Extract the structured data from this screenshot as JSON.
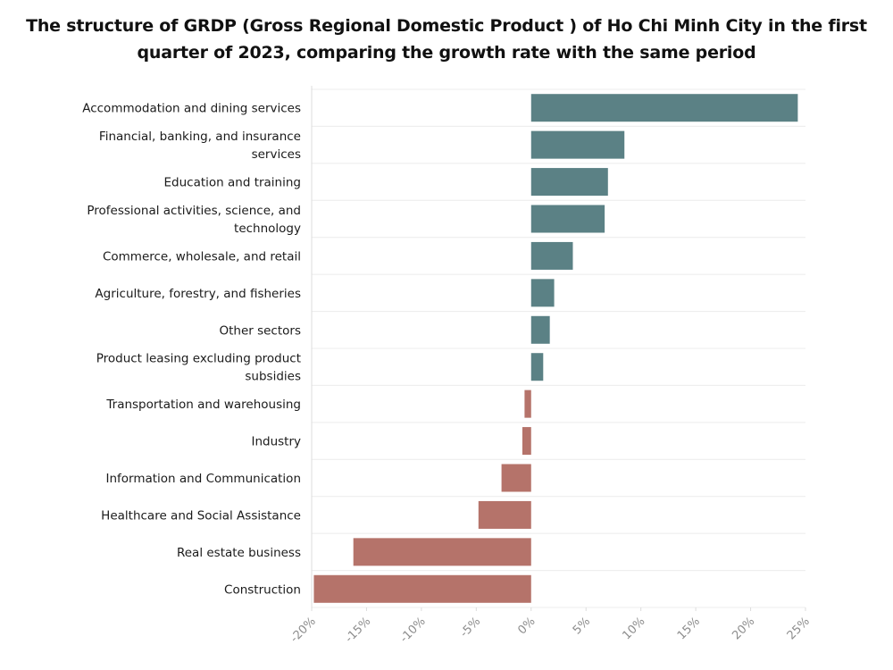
{
  "chart_data": {
    "type": "bar",
    "orientation": "horizontal",
    "title": "The structure of GRDP (Gross Regional Domestic Product ) of Ho Chi Minh City in the first quarter of 2023, comparing the growth rate with the same period",
    "categories": [
      "Accommodation and dining services",
      "Financial, banking, and insurance services",
      "Education and training",
      "Professional activities, science, and technology",
      "Commerce, wholesale, and retail",
      "Agriculture, forestry, and fisheries",
      "Other sectors",
      "Product leasing excluding product subsidies",
      "Transportation and warehousing",
      "Industry",
      "Information and Communication",
      "Healthcare and Social Assistance",
      "Real estate business",
      "Construction"
    ],
    "values": [
      24.3,
      8.5,
      7.0,
      6.7,
      3.8,
      2.1,
      1.7,
      1.1,
      -0.6,
      -0.8,
      -2.7,
      -4.8,
      -16.2,
      -19.8
    ],
    "xlim": [
      -20,
      25
    ],
    "x_ticks": [
      "-20%",
      "-15%",
      "-10%",
      "-5%",
      "0%",
      "5%",
      "10%",
      "15%",
      "20%",
      "25%"
    ],
    "colors": {
      "positive": "#5b8185",
      "negative": "#b5736a"
    },
    "grid": true,
    "xlabel": "",
    "ylabel": ""
  }
}
